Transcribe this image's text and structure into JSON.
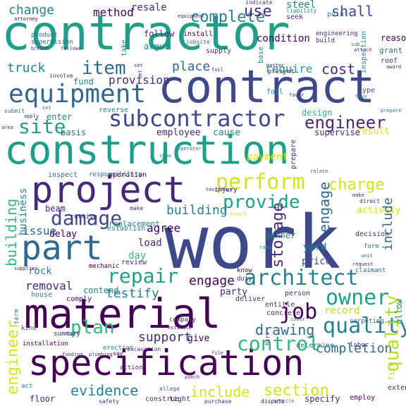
{
  "colors": {
    "background": "#ffffff",
    "dark_purple": "#440154",
    "purple": "#482878",
    "indigo": "#3e4989",
    "blue": "#31688e",
    "teal_blue": "#26828e",
    "teal": "#1f9e89",
    "green": "#35b779",
    "light_green": "#6ece58",
    "yellow_green": "#b5de2b",
    "yellow": "#d4e21a"
  },
  "words": [
    {
      "text": "work",
      "color": "#3e4989"
    },
    {
      "text": "contractor",
      "color": "#1f9e89"
    },
    {
      "text": "construction",
      "color": "#1f9e89"
    },
    {
      "text": "contract",
      "color": "#3e4989"
    },
    {
      "text": "material",
      "color": "#440154"
    },
    {
      "text": "specification",
      "color": "#440154"
    },
    {
      "text": "project",
      "color": "#482878"
    },
    {
      "text": "part",
      "color": "#31688e"
    },
    {
      "text": "equipment",
      "color": "#31688e"
    },
    {
      "text": "subcontractor",
      "color": "#3e4989"
    },
    {
      "text": "architect",
      "color": "#26828e"
    },
    {
      "text": "perform",
      "color": "#d4e21a"
    },
    {
      "text": "provide",
      "color": "#1f9e89"
    },
    {
      "text": "job",
      "color": "#440154"
    },
    {
      "text": "owner",
      "color": "#1f9e89"
    },
    {
      "text": "repair",
      "color": "#1f9e89"
    },
    {
      "text": "quality",
      "color": "#b5de2b"
    },
    {
      "text": "plan",
      "color": "#26828e"
    },
    {
      "text": "control",
      "color": "#35b779"
    },
    {
      "text": "site",
      "color": "#35b779"
    },
    {
      "text": "engineer",
      "color": "#d4e21a"
    },
    {
      "text": "item",
      "color": "#1f9e89"
    },
    {
      "text": "complete",
      "color": "#482878"
    },
    {
      "text": "use",
      "color": "#31688e"
    },
    {
      "text": "shall",
      "color": "#26828e"
    },
    {
      "text": "cost",
      "color": "#482878"
    },
    {
      "text": "charge",
      "color": "#3e4989"
    },
    {
      "text": "claim",
      "color": "#482878"
    },
    {
      "text": "damage",
      "color": "#d4e21a"
    },
    {
      "text": "building",
      "color": "#35b779"
    },
    {
      "text": "pay",
      "color": "#3e4989"
    },
    {
      "text": "furnish",
      "color": "#26828e"
    },
    {
      "text": "storage",
      "color": "#482878"
    },
    {
      "text": "engage",
      "color": "#31688e"
    },
    {
      "text": "include",
      "color": "#31688e"
    },
    {
      "text": "section",
      "color": "#440154"
    },
    {
      "text": "evidence",
      "color": "#d4e21a"
    },
    {
      "text": "testify",
      "color": "#d4e21a"
    },
    {
      "text": "support",
      "color": "#26828e"
    },
    {
      "text": "completion",
      "color": "#26828e"
    },
    {
      "text": "drawing",
      "color": "#482878"
    },
    {
      "text": "truck",
      "color": "#31688e"
    },
    {
      "text": "place",
      "color": "#31688e"
    },
    {
      "text": "require",
      "color": "#26828e"
    },
    {
      "text": "provision",
      "color": "#31688e"
    },
    {
      "text": "change",
      "color": "#1f9e89"
    },
    {
      "text": "method",
      "color": "#482878"
    },
    {
      "text": "resale",
      "color": "#26828e"
    },
    {
      "text": "steel",
      "color": "#440154"
    },
    {
      "text": "condition",
      "color": "#482878"
    },
    {
      "text": "follow",
      "color": "#26828e"
    },
    {
      "text": "argue",
      "color": "#440154"
    },
    {
      "text": "fund",
      "color": "#482878"
    },
    {
      "text": "basis",
      "color": "#26828e"
    },
    {
      "text": "enter",
      "color": "#26828e"
    },
    {
      "text": "employee",
      "color": "#31688e"
    },
    {
      "text": "cause",
      "color": "#26828e"
    },
    {
      "text": "result",
      "color": "#482878"
    },
    {
      "text": "supervise",
      "color": "#26828e"
    },
    {
      "text": "payment",
      "color": "#d4e21a"
    },
    {
      "text": "agree",
      "color": "#482878"
    },
    {
      "text": "load",
      "color": "#d4e21a"
    },
    {
      "text": "day",
      "color": "#440154"
    },
    {
      "text": "issue",
      "color": "#482878"
    },
    {
      "text": "delay",
      "color": "#35b779"
    },
    {
      "text": "rock",
      "color": "#31688e"
    },
    {
      "text": "removal",
      "color": "#440154"
    },
    {
      "text": "contend",
      "color": "#26828e"
    },
    {
      "text": "party",
      "color": "#482878"
    },
    {
      "text": "give",
      "color": "#26828e"
    },
    {
      "text": "yard",
      "color": "#482878"
    },
    {
      "text": "price",
      "color": "#440154"
    },
    {
      "text": "record",
      "color": "#26828e"
    },
    {
      "text": "manner",
      "color": "#3e4989"
    },
    {
      "text": "activity",
      "color": "#b5de2b"
    },
    {
      "text": "business",
      "color": "#26828e"
    },
    {
      "text": "floor",
      "color": "#d4e21a"
    },
    {
      "text": "specify",
      "color": "#26828e"
    },
    {
      "text": "determine",
      "color": "#482878"
    },
    {
      "text": "decision",
      "color": "#482878"
    },
    {
      "text": "design",
      "color": "#26828e"
    },
    {
      "text": "beam",
      "color": "#482878"
    },
    {
      "text": "replacement",
      "color": "#35b779"
    },
    {
      "text": "establish",
      "color": "#482878"
    },
    {
      "text": "operation",
      "color": "#26828e"
    },
    {
      "text": "inspect",
      "color": "#26828e"
    },
    {
      "text": "responsibility",
      "color": "#440154"
    },
    {
      "text": "supervision",
      "color": "#31688e"
    },
    {
      "text": "product",
      "color": "#31688e"
    },
    {
      "text": "install",
      "color": "#31688e"
    },
    {
      "text": "jobsite",
      "color": "#31688e"
    },
    {
      "text": "supply",
      "color": "#440154"
    },
    {
      "text": "position",
      "color": "#31688e"
    },
    {
      "text": "base",
      "color": "#482878"
    },
    {
      "text": "inspection",
      "color": "#26828e"
    },
    {
      "text": "engineering",
      "color": "#26828e"
    },
    {
      "text": "build",
      "color": "#482878"
    },
    {
      "text": "reason",
      "color": "#482878"
    },
    {
      "text": "grant",
      "color": "#440154"
    },
    {
      "text": "roof",
      "color": "#31688e"
    },
    {
      "text": "foil",
      "color": "#482878"
    },
    {
      "text": "type",
      "color": "#26828e"
    },
    {
      "text": "have",
      "color": "#3e4989"
    },
    {
      "text": "present",
      "color": "#26828e"
    },
    {
      "text": "reverse",
      "color": "#482878"
    },
    {
      "text": "submit",
      "color": "#482878"
    },
    {
      "text": "involve",
      "color": "#26828e"
    },
    {
      "text": "favor",
      "color": "#31688e"
    },
    {
      "text": "prepare",
      "color": "#482878"
    },
    {
      "text": "point",
      "color": "#482878"
    },
    {
      "text": "seek",
      "color": "#26828e"
    },
    {
      "text": "liability",
      "color": "#482878"
    },
    {
      "text": "indicate",
      "color": "#26828e"
    },
    {
      "text": "receive",
      "color": "#482878"
    },
    {
      "text": "erect",
      "color": "#26828e"
    },
    {
      "text": "injury",
      "color": "#482878"
    },
    {
      "text": "testimony",
      "color": "#482878"
    },
    {
      "text": "operator",
      "color": "#d4e21a"
    },
    {
      "text": "show",
      "color": "#482878"
    },
    {
      "text": "make",
      "color": "#482878"
    },
    {
      "text": "direct",
      "color": "#31688e"
    },
    {
      "text": "unit",
      "color": "#26828e"
    },
    {
      "text": "form",
      "color": "#482878"
    },
    {
      "text": "claimant",
      "color": "#482878"
    },
    {
      "text": "request",
      "color": "#482878"
    },
    {
      "text": "know",
      "color": "#31688e"
    },
    {
      "text": "ramp",
      "color": "#26828e"
    },
    {
      "text": "review",
      "color": "#31688e"
    },
    {
      "text": "mechanic",
      "color": "#482878"
    },
    {
      "text": "house",
      "color": "#440154"
    },
    {
      "text": "comply",
      "color": "#26828e"
    },
    {
      "text": "deliver",
      "color": "#482878"
    },
    {
      "text": "duty",
      "color": "#440154"
    },
    {
      "text": "person",
      "color": "#26828e"
    },
    {
      "text": "entitle",
      "color": "#440154"
    },
    {
      "text": "concrete",
      "color": "#482878"
    },
    {
      "text": "cover",
      "color": "#482878"
    },
    {
      "text": "carpeting",
      "color": "#482878"
    },
    {
      "text": "allow",
      "color": "#482878"
    },
    {
      "text": "labor",
      "color": "#482878"
    },
    {
      "text": "company",
      "color": "#31688e"
    },
    {
      "text": "estimate",
      "color": "#31688e"
    },
    {
      "text": "erection",
      "color": "#26828e"
    },
    {
      "text": "kind",
      "color": "#482878"
    },
    {
      "text": "summary",
      "color": "#482878"
    },
    {
      "text": "fall",
      "color": "#482878"
    },
    {
      "text": "installation",
      "color": "#26828e"
    },
    {
      "text": "term",
      "color": "#31688e"
    },
    {
      "text": "act",
      "color": "#482878"
    },
    {
      "text": "action",
      "color": "#26828e"
    },
    {
      "text": "punch",
      "color": "#440154"
    },
    {
      "text": "allege",
      "color": "#26828e"
    },
    {
      "text": "safety",
      "color": "#26828e"
    },
    {
      "text": "construe",
      "color": "#482878"
    },
    {
      "text": "tight",
      "color": "#482878"
    },
    {
      "text": "purchase",
      "color": "#31688e"
    },
    {
      "text": "dispute",
      "color": "#482878"
    },
    {
      "text": "article",
      "color": "#482878"
    },
    {
      "text": "employ",
      "color": "#482878"
    },
    {
      "text": "extension",
      "color": "#482878"
    },
    {
      "text": "file",
      "color": "#440154"
    },
    {
      "text": "funding",
      "color": "#26828e"
    },
    {
      "text": "plumbing",
      "color": "#440154"
    },
    {
      "text": "say",
      "color": "#482878"
    },
    {
      "text": "excavation",
      "color": "#b5de2b"
    },
    {
      "text": "supplier",
      "color": "#482878"
    },
    {
      "text": "attorney",
      "color": "#482878"
    },
    {
      "text": "breach",
      "color": "#482878"
    },
    {
      "text": "follows",
      "color": "#440154"
    },
    {
      "text": "take",
      "color": "#482878"
    },
    {
      "text": "matter",
      "color": "#482878"
    },
    {
      "text": "sub",
      "color": "#440154"
    },
    {
      "text": "attach",
      "color": "#482878"
    },
    {
      "text": "award",
      "color": "#482878"
    },
    {
      "text": "equipment",
      "color": "#482878"
    },
    {
      "text": "apply",
      "color": "#26828e"
    },
    {
      "text": "area",
      "color": "#482878"
    },
    {
      "text": "set",
      "color": "#31688e"
    },
    {
      "text": "hire",
      "color": "#482878"
    },
    {
      "text": "relate",
      "color": "#482878"
    },
    {
      "text": "business",
      "color": "#26828e"
    },
    {
      "text": "remove",
      "color": "#482878"
    },
    {
      "text": "kw",
      "color": "#482878"
    },
    {
      "text": "por",
      "color": "#482878"
    },
    {
      "text": "program",
      "color": "#26828e"
    },
    {
      "text": "prove",
      "color": "#482878"
    },
    {
      "text": "deny",
      "color": "#482878"
    },
    {
      "text": "connection",
      "color": "#482878"
    },
    {
      "text": "document",
      "color": "#31688e"
    }
  ]
}
